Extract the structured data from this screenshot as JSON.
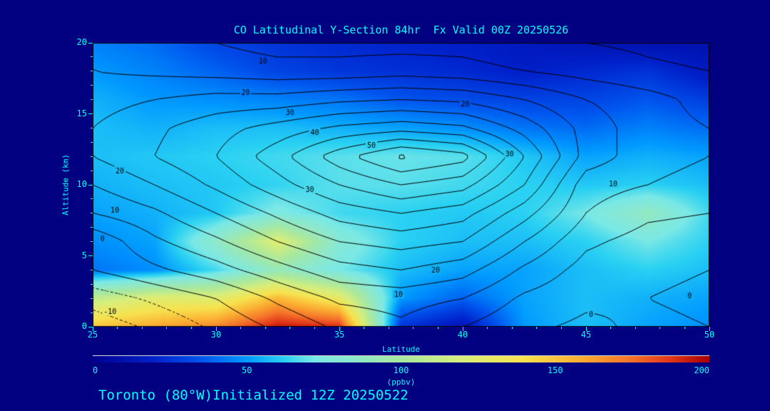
{
  "page": {
    "background": "#000080",
    "accent_text_color": "#00ffff"
  },
  "title": "CO Latitudinal Y-Section 84hr  Fx Valid 00Z 20250526",
  "footer": "Toronto (80°W)Initialized 12Z 20250522",
  "axes": {
    "x_label": "Latitude",
    "y_label": "Altitude (km)",
    "x_ticks": [
      25,
      30,
      35,
      40,
      45,
      50
    ],
    "y_ticks": [
      0,
      5,
      10,
      15,
      20
    ]
  },
  "colorbar": {
    "min": 0,
    "max": 200,
    "ticks": [
      0,
      50,
      100,
      150,
      200
    ],
    "units": "(ppbv)"
  },
  "chart_data": {
    "type": "heatmap",
    "title": "CO Latitudinal Y-Section 84hr  Fx Valid 00Z 20250526",
    "xlabel": "Latitude",
    "ylabel": "Altitude (km)",
    "x_range": [
      25,
      50
    ],
    "y_range": [
      0,
      20
    ],
    "fill_units": "ppbv",
    "x_latitude": [
      25,
      27.5,
      30,
      32.5,
      35,
      37.5,
      40,
      42.5,
      45,
      47.5,
      50
    ],
    "y_altitude_km": [
      0,
      2,
      4,
      6,
      8,
      10,
      12,
      14,
      16,
      18,
      20
    ],
    "fill_values_ppbv": [
      [
        150,
        160,
        170,
        195,
        190,
        25,
        12,
        50,
        58,
        52,
        48
      ],
      [
        110,
        125,
        125,
        155,
        130,
        50,
        38,
        52,
        58,
        55,
        52
      ],
      [
        42,
        48,
        65,
        90,
        72,
        58,
        52,
        52,
        58,
        62,
        58
      ],
      [
        48,
        52,
        85,
        125,
        80,
        62,
        58,
        58,
        62,
        72,
        62
      ],
      [
        52,
        55,
        60,
        75,
        65,
        62,
        60,
        62,
        72,
        88,
        65
      ],
      [
        55,
        58,
        60,
        63,
        68,
        68,
        65,
        62,
        60,
        62,
        58
      ],
      [
        58,
        60,
        62,
        65,
        68,
        70,
        68,
        60,
        52,
        55,
        52
      ],
      [
        58,
        55,
        58,
        58,
        55,
        52,
        48,
        42,
        40,
        45,
        40
      ],
      [
        55,
        50,
        48,
        45,
        42,
        35,
        32,
        30,
        30,
        35,
        28
      ],
      [
        50,
        45,
        38,
        30,
        26,
        24,
        22,
        18,
        22,
        25,
        15
      ],
      [
        45,
        40,
        30,
        25,
        22,
        20,
        18,
        15,
        12,
        10,
        10
      ]
    ],
    "contour_overlay": {
      "levels": [
        -15,
        -10,
        -5,
        0,
        5,
        10,
        15,
        20,
        25,
        30,
        35,
        40,
        45,
        50,
        55
      ],
      "negative_style": "dotted",
      "values": [
        [
          -13,
          -9,
          -4,
          1,
          6,
          9,
          5,
          1,
          -1,
          1,
          0
        ],
        [
          -8,
          -4,
          0,
          6,
          11,
          12,
          10,
          4,
          1,
          0,
          -1
        ],
        [
          0,
          4,
          8,
          13,
          18,
          20,
          17,
          9,
          3,
          1,
          0
        ],
        [
          1,
          9,
          14,
          20,
          25,
          27,
          25,
          15,
          6,
          3,
          2
        ],
        [
          10,
          14,
          20,
          26,
          32,
          35,
          32,
          22,
          10,
          6,
          5
        ],
        [
          15,
          20,
          26,
          33,
          40,
          45,
          42,
          30,
          12,
          10,
          8
        ],
        [
          20,
          25,
          30,
          38,
          48,
          56,
          52,
          35,
          18,
          12,
          10
        ],
        [
          20,
          24,
          28,
          32,
          36,
          38,
          36,
          28,
          18,
          12,
          10
        ],
        [
          18,
          20,
          22,
          22,
          24,
          25,
          24,
          20,
          15,
          12,
          8
        ],
        [
          15,
          14,
          13,
          12,
          12,
          13,
          12,
          10,
          8,
          6,
          5
        ],
        [
          15,
          12,
          10,
          8,
          8,
          8,
          8,
          6,
          5,
          4,
          3
        ]
      ],
      "labels": [
        {
          "v": 10,
          "lat": 31.9,
          "alt": 18.7
        },
        {
          "v": 20,
          "lat": 31.2,
          "alt": 16.5
        },
        {
          "v": 30,
          "lat": 33.0,
          "alt": 15.1
        },
        {
          "v": 40,
          "lat": 34.0,
          "alt": 13.7
        },
        {
          "v": 50,
          "lat": 36.3,
          "alt": 12.8
        },
        {
          "v": 20,
          "lat": 40.1,
          "alt": 15.7
        },
        {
          "v": 30,
          "lat": 41.9,
          "alt": 12.2
        },
        {
          "v": 10,
          "lat": 46.1,
          "alt": 10.1
        },
        {
          "v": 20,
          "lat": 26.1,
          "alt": 11.0
        },
        {
          "v": 10,
          "lat": 25.9,
          "alt": 8.2
        },
        {
          "v": 0,
          "lat": 25.4,
          "alt": 6.2
        },
        {
          "v": 30,
          "lat": 33.8,
          "alt": 9.7
        },
        {
          "v": 20,
          "lat": 38.9,
          "alt": 4.0
        },
        {
          "v": 10,
          "lat": 37.4,
          "alt": 2.3
        },
        {
          "v": 0,
          "lat": 45.2,
          "alt": 0.9
        },
        {
          "v": -10,
          "lat": 25.7,
          "alt": 1.1
        },
        {
          "v": 0,
          "lat": 49.2,
          "alt": 2.2
        }
      ]
    },
    "colormap_stops": [
      {
        "v": 0,
        "c": "#000090"
      },
      {
        "v": 20,
        "c": "#0022cc"
      },
      {
        "v": 35,
        "c": "#0055ee"
      },
      {
        "v": 50,
        "c": "#0099ff"
      },
      {
        "v": 62,
        "c": "#2ad1f2"
      },
      {
        "v": 72,
        "c": "#7ae8e6"
      },
      {
        "v": 85,
        "c": "#8fe8c8"
      },
      {
        "v": 100,
        "c": "#a8e8a0"
      },
      {
        "v": 120,
        "c": "#d8ee7a"
      },
      {
        "v": 140,
        "c": "#f7e24e"
      },
      {
        "v": 158,
        "c": "#fbae32"
      },
      {
        "v": 175,
        "c": "#f4712a"
      },
      {
        "v": 188,
        "c": "#e03418"
      },
      {
        "v": 200,
        "c": "#a80000"
      }
    ]
  }
}
